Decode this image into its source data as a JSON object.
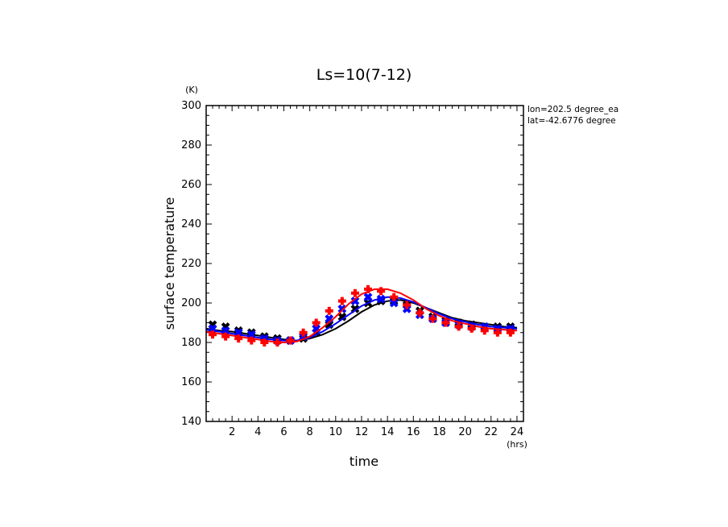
{
  "chart_data": {
    "type": "line",
    "title": "Ls=10(7-12)",
    "xlabel": "time",
    "ylabel": "surface temperature",
    "x_unit": "(hrs)",
    "y_unit": "(K)",
    "xlim": [
      0,
      24.5
    ],
    "ylim": [
      140,
      300
    ],
    "x_ticks": [
      2,
      4,
      6,
      8,
      10,
      12,
      14,
      16,
      18,
      20,
      22,
      24
    ],
    "y_ticks": [
      140,
      160,
      180,
      200,
      220,
      240,
      260,
      280,
      300
    ],
    "annotations": [
      "lon=202.5 degree_ea",
      "lat=-42.6776 degree"
    ],
    "grid": false,
    "x": [
      0,
      1,
      2,
      3,
      4,
      5,
      6,
      7,
      8,
      9,
      10,
      11,
      12,
      13,
      14,
      15,
      16,
      17,
      18,
      19,
      20,
      21,
      22,
      23,
      24
    ],
    "series": [
      {
        "color": "#000000",
        "marker": "x",
        "line": [
          187,
          186,
          185.5,
          184.5,
          183.5,
          182.5,
          181.5,
          181,
          182,
          184,
          187,
          191,
          195.5,
          199,
          201,
          201.5,
          200,
          197.5,
          195,
          192.5,
          191,
          190,
          189,
          188,
          187.5
        ],
        "markers": [
          189,
          188,
          186,
          185,
          183,
          182,
          181,
          182,
          185,
          189,
          193,
          197,
          200,
          201,
          201,
          199,
          196,
          193,
          191,
          190,
          189,
          188,
          188,
          188
        ]
      },
      {
        "color": "#0000ff",
        "marker": "x",
        "line": [
          186.5,
          185.5,
          184.5,
          183.5,
          182.5,
          181.5,
          181,
          181,
          182.5,
          185.5,
          189.5,
          194,
          198.5,
          201.5,
          203,
          202.5,
          200.5,
          197.5,
          194.5,
          192,
          190.5,
          189,
          188,
          187.5,
          187
        ],
        "markers": [
          187,
          186,
          185,
          184,
          182,
          181,
          181,
          183,
          187,
          192,
          197,
          201,
          203,
          202,
          200,
          197,
          194,
          192,
          190,
          189,
          188,
          188,
          187,
          187
        ]
      },
      {
        "color": "#ff0000",
        "marker": "+",
        "line": [
          185.5,
          184.5,
          183.5,
          182.5,
          181.5,
          180.5,
          180,
          180.5,
          183,
          187.5,
          193,
          199.5,
          204.5,
          207,
          207,
          205,
          201.5,
          197,
          193.5,
          191,
          189.5,
          188,
          187,
          186.5,
          186
        ],
        "markers": [
          184,
          183,
          182,
          181,
          180,
          180,
          181,
          185,
          190,
          196,
          201,
          205,
          207,
          206,
          203,
          199,
          195,
          192,
          190,
          188,
          187,
          186,
          185,
          185
        ]
      }
    ]
  }
}
